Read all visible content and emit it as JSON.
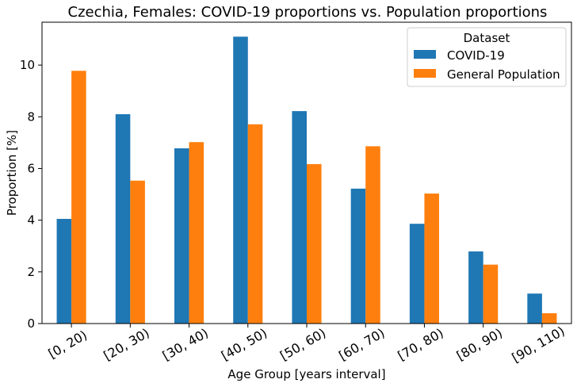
{
  "chart_data": {
    "type": "bar",
    "title": "Czechia, Females: COVID-19 proportions vs. Population proportions",
    "xlabel": "Age Group [years interval]",
    "ylabel": "Proportion [%]",
    "categories": [
      "[0, 20)",
      "[20, 30)",
      "[30, 40)",
      "[40, 50)",
      "[50, 60)",
      "[60, 70)",
      "[70, 80)",
      "[80, 90)",
      "[90, 110)"
    ],
    "series": [
      {
        "name": "COVID-19",
        "color": "#1f77b4",
        "values": [
          4.05,
          8.1,
          6.78,
          11.1,
          8.22,
          5.22,
          3.86,
          2.79,
          1.16
        ]
      },
      {
        "name": "General Population",
        "color": "#ff7f0e",
        "values": [
          9.78,
          5.53,
          7.02,
          7.71,
          6.17,
          6.86,
          5.03,
          2.28,
          0.4
        ]
      }
    ],
    "ylim": [
      0,
      11.66
    ],
    "yticks": [
      "0",
      "2",
      "4",
      "6",
      "8",
      "10"
    ],
    "grid": false,
    "legend": {
      "title": "Dataset",
      "placement": "top-right"
    }
  }
}
